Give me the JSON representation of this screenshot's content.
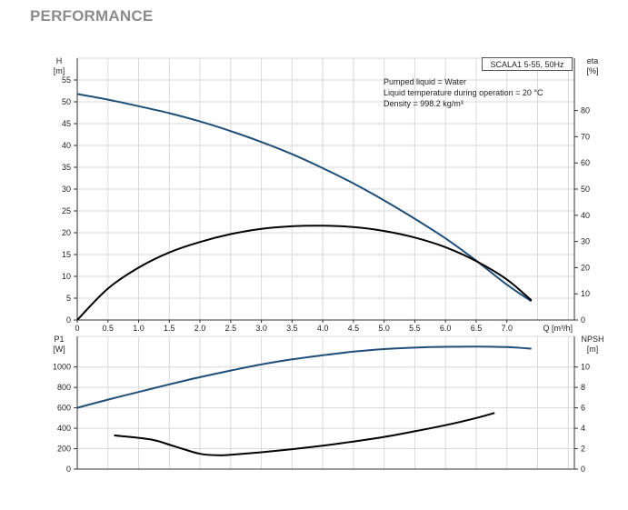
{
  "title": "PERFORMANCE",
  "model": "SCALA1 5-55, 50Hz",
  "info": [
    "Pumped liquid = Water",
    "Liquid temperature during operation = 20 °C",
    "Density = 998.2 kg/m³"
  ],
  "colors": {
    "head_curve": "#1f4e79",
    "eta_curve": "#000000",
    "p1_curve": "#1f4e79",
    "npsh_curve": "#000000",
    "grid": "#d9d9d9"
  },
  "chart_data": [
    {
      "type": "line",
      "name": "pump-curve-top",
      "x_ticks": [
        "0",
        "0.5",
        "1.0",
        "1.5",
        "2.0",
        "2.5",
        "3.0",
        "3.5",
        "4.0",
        "4.5",
        "5.0",
        "5.5",
        "6.0",
        "6.5",
        "7.0"
      ],
      "xlabel": "Q [m³/h]",
      "xlim": [
        0,
        8.1
      ],
      "ylabel_left": [
        "H",
        "[m]"
      ],
      "ylabel_right": [
        "eta",
        "[%]"
      ],
      "ylim_left": [
        0,
        60
      ],
      "ylim_right": [
        0,
        100
      ],
      "y_left_ticks": [
        "0",
        "5",
        "10",
        "15",
        "20",
        "25",
        "30",
        "35",
        "40",
        "45",
        "50",
        "55"
      ],
      "y_right_ticks": [
        "0",
        "10",
        "20",
        "30",
        "40",
        "50",
        "60",
        "70",
        "80"
      ],
      "series": [
        {
          "axis": "left",
          "x": [
            0,
            0.5,
            1.0,
            1.5,
            2.0,
            2.5,
            3.0,
            3.5,
            4.0,
            4.5,
            5.0,
            5.5,
            6.0,
            6.5,
            7.0,
            7.4
          ],
          "y": [
            51.8,
            50.5,
            49.0,
            47.4,
            45.5,
            43.3,
            40.8,
            38.0,
            34.8,
            31.3,
            27.4,
            23.2,
            18.7,
            13.6,
            8.1,
            4.3
          ]
        },
        {
          "axis": "right",
          "x": [
            0,
            0.5,
            1.0,
            1.5,
            2.0,
            2.5,
            3.0,
            3.5,
            4.0,
            4.5,
            5.0,
            5.5,
            6.0,
            6.5,
            7.0,
            7.4
          ],
          "y": [
            0,
            12.0,
            20.0,
            25.8,
            29.8,
            32.8,
            34.8,
            35.8,
            36.0,
            35.5,
            34.0,
            31.5,
            27.8,
            22.5,
            15.5,
            7.5
          ]
        }
      ]
    },
    {
      "type": "line",
      "name": "pump-curve-bottom",
      "xlim": [
        0,
        8.1
      ],
      "ylabel_left": [
        "P1",
        "[W]"
      ],
      "ylabel_right": [
        "NPSH",
        "[m]"
      ],
      "ylim_left": [
        0,
        1300
      ],
      "ylim_right": [
        0,
        13
      ],
      "y_left_ticks": [
        "0",
        "200",
        "400",
        "600",
        "800",
        "1000"
      ],
      "y_right_ticks": [
        "0",
        "2",
        "4",
        "6",
        "8",
        "10"
      ],
      "series": [
        {
          "axis": "left",
          "x": [
            0,
            0.5,
            1.0,
            1.5,
            2.0,
            2.5,
            3.0,
            3.5,
            4.0,
            4.5,
            5.0,
            5.5,
            6.0,
            6.5,
            7.0,
            7.4
          ],
          "y": [
            600,
            680,
            755,
            830,
            900,
            965,
            1025,
            1075,
            1115,
            1150,
            1175,
            1190,
            1198,
            1200,
            1195,
            1180
          ]
        },
        {
          "axis": "right",
          "x": [
            0.6,
            1.2,
            1.6,
            2.0,
            2.3,
            2.5,
            3.0,
            3.5,
            4.0,
            4.5,
            5.0,
            5.5,
            6.0,
            6.5,
            6.8
          ],
          "y": [
            3.3,
            2.9,
            2.2,
            1.5,
            1.35,
            1.4,
            1.65,
            1.95,
            2.3,
            2.7,
            3.15,
            3.7,
            4.3,
            5.0,
            5.5
          ]
        }
      ]
    }
  ]
}
